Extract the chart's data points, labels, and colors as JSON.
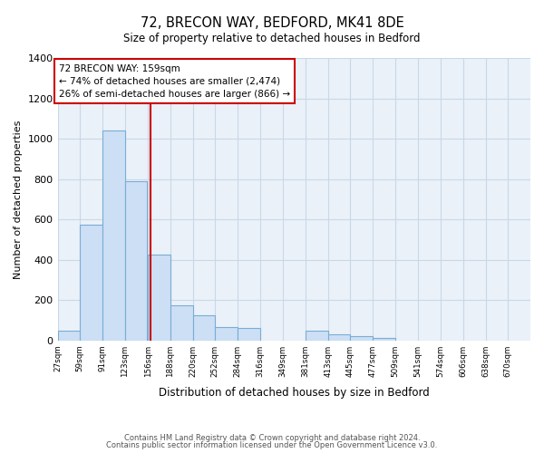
{
  "title": "72, BRECON WAY, BEDFORD, MK41 8DE",
  "subtitle": "Size of property relative to detached houses in Bedford",
  "xlabel": "Distribution of detached houses by size in Bedford",
  "ylabel": "Number of detached properties",
  "bar_color": "#ccdff5",
  "bar_edge_color": "#7aadd4",
  "plot_bg_color": "#eaf1f8",
  "grid_color": "#c8d8e8",
  "annotation_box_color": "#cc0000",
  "property_line_color": "#cc0000",
  "property_value": 159,
  "annotation_title": "72 BRECON WAY: 159sqm",
  "annotation_line2": "← 74% of detached houses are smaller (2,474)",
  "annotation_line3": "26% of semi-detached houses are larger (866) →",
  "footnote1": "Contains HM Land Registry data © Crown copyright and database right 2024.",
  "footnote2": "Contains public sector information licensed under the Open Government Licence v3.0.",
  "bins": [
    27,
    59,
    91,
    123,
    156,
    188,
    220,
    252,
    284,
    316,
    349,
    381,
    413,
    445,
    477,
    509,
    541,
    574,
    606,
    638,
    670
  ],
  "counts": [
    50,
    575,
    1040,
    790,
    425,
    175,
    125,
    65,
    60,
    0,
    0,
    50,
    30,
    20,
    10,
    0,
    0,
    0,
    0,
    0
  ],
  "ylim": [
    0,
    1400
  ],
  "yticks": [
    0,
    200,
    400,
    600,
    800,
    1000,
    1200,
    1400
  ],
  "tick_labels": [
    "27sqm",
    "59sqm",
    "91sqm",
    "123sqm",
    "156sqm",
    "188sqm",
    "220sqm",
    "252sqm",
    "284sqm",
    "316sqm",
    "349sqm",
    "381sqm",
    "413sqm",
    "445sqm",
    "477sqm",
    "509sqm",
    "541sqm",
    "574sqm",
    "606sqm",
    "638sqm",
    "670sqm"
  ]
}
